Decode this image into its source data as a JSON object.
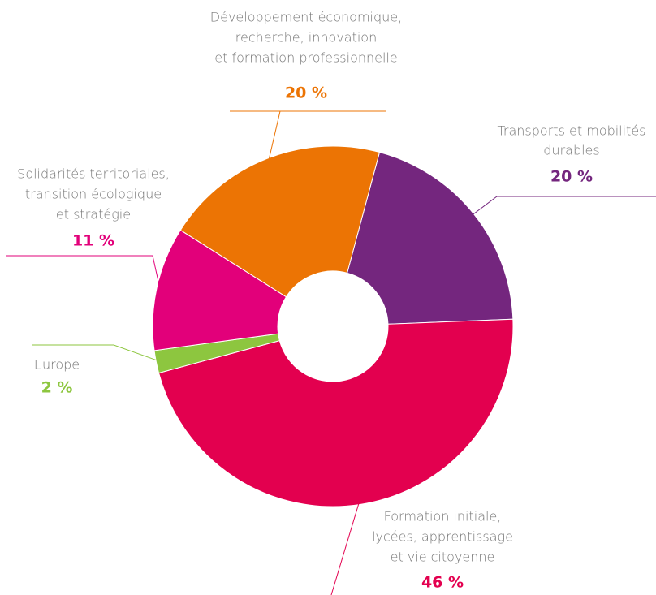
{
  "chart_data": {
    "type": "donut",
    "categories": [
      [
        "Transports et mobilités",
        "durables"
      ],
      [
        "Formation initiale,",
        "lycées, apprentissage",
        "et vie citoyenne"
      ],
      [
        "Europe"
      ],
      [
        "Solidarités territoriales,",
        "transition écologique",
        "et stratégie"
      ],
      [
        "Développement économique,",
        "recherche, innovation",
        "et formation professionnelle"
      ]
    ],
    "values": [
      20,
      46,
      2,
      11,
      20
    ],
    "value_labels": [
      "20 %",
      "46 %",
      "2 %",
      "11 %",
      "20 %"
    ],
    "colors": [
      "#74267e",
      "#e3004f",
      "#8dc63f",
      "#e2007a",
      "#ec7404"
    ]
  }
}
